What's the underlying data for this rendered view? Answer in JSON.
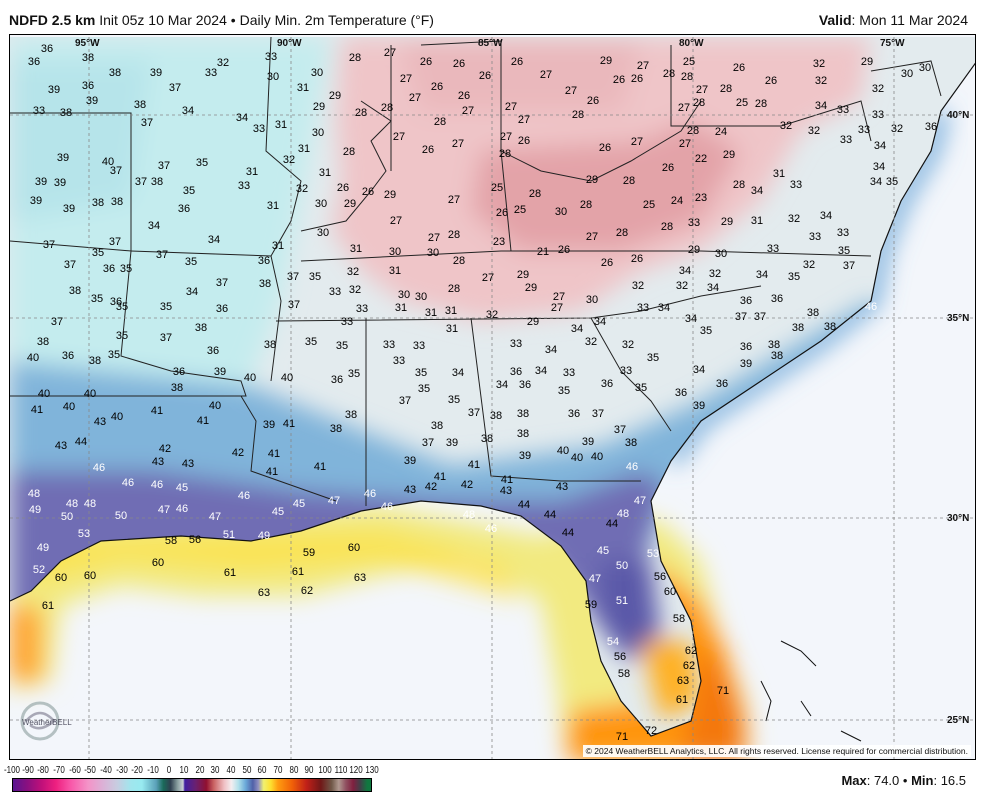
{
  "header": {
    "model": "NDFD 2.5 km",
    "init": "Init 05z 10 Mar 2024",
    "separator": "•",
    "product": "Daily Min. 2m Temperature (°F)",
    "valid_label": "Valid",
    "valid_value": ": Mon 11 Mar 2024"
  },
  "map": {
    "longitude_labels": [
      "95°W",
      "90°W",
      "85°W",
      "80°W",
      "75°W"
    ],
    "latitude_labels": [
      "40°N",
      "35°N",
      "30°N",
      "25°N"
    ],
    "temperature_labels": [
      36,
      38,
      36,
      33,
      28,
      27,
      26,
      26,
      26,
      29,
      25,
      26,
      32,
      29,
      39,
      36,
      38,
      39,
      37,
      33,
      32,
      30,
      30,
      31,
      29,
      27,
      27,
      26,
      26,
      26,
      27,
      27,
      26,
      26,
      26,
      27,
      28,
      28,
      27,
      28,
      25,
      26,
      28,
      32,
      32,
      30,
      30,
      39,
      38,
      37,
      34,
      34,
      33,
      31,
      29,
      28,
      28,
      28,
      27,
      27,
      27,
      28,
      27,
      28,
      24,
      28,
      33,
      34,
      32,
      32,
      32,
      33,
      36,
      38,
      33,
      39,
      40,
      37,
      37,
      38,
      37,
      35,
      33,
      31,
      32,
      30,
      31,
      28,
      27,
      26,
      27,
      28,
      27,
      26,
      26,
      27,
      27,
      22,
      29,
      31,
      28,
      34,
      33,
      33,
      33,
      34,
      34,
      34,
      35,
      39,
      39,
      39,
      39,
      38,
      38,
      36,
      35,
      34,
      31,
      32,
      31,
      26,
      26,
      29,
      29,
      30,
      27,
      27,
      25,
      28,
      26,
      25,
      30,
      28,
      28,
      29,
      26,
      25,
      24,
      23,
      28,
      33,
      29,
      31,
      32,
      34,
      33,
      33,
      37,
      35,
      37,
      37,
      34,
      31,
      30,
      31,
      30,
      30,
      27,
      28,
      23,
      21,
      26,
      27,
      28,
      29,
      30,
      33,
      35,
      32,
      37,
      37,
      36,
      35,
      35,
      36,
      37,
      35,
      32,
      31,
      28,
      27,
      29,
      26,
      26,
      34,
      32,
      34,
      35,
      29,
      38,
      35,
      36,
      34,
      37,
      38,
      33,
      32,
      30,
      30,
      28,
      27,
      30,
      32,
      32,
      34,
      37,
      35,
      35,
      36,
      37,
      33,
      31,
      31,
      31,
      32,
      27,
      33,
      34,
      34,
      36,
      36,
      37,
      37,
      38,
      38,
      38,
      46,
      38,
      35,
      37,
      38,
      33,
      31,
      29,
      34,
      34,
      32,
      38,
      35,
      35,
      33,
      33,
      33,
      34,
      32,
      35,
      35,
      36,
      38,
      40,
      36,
      38,
      35,
      36,
      36,
      33,
      34,
      35,
      36,
      34,
      33,
      36,
      33,
      35,
      34,
      39,
      38,
      38,
      39,
      40,
      40,
      36,
      35,
      35,
      35,
      37,
      34,
      36,
      35,
      36,
      36,
      39,
      40,
      40,
      41,
      40,
      43,
      40,
      41,
      40,
      41,
      38,
      38,
      39,
      41,
      38,
      37,
      38,
      38,
      36,
      37,
      38,
      37,
      38,
      39,
      37,
      38,
      43,
      44,
      46,
      42,
      43,
      43,
      42,
      41,
      41,
      41,
      39,
      39,
      40,
      39,
      40,
      40,
      41,
      41,
      41,
      43,
      42,
      42,
      43,
      43,
      44,
      46,
      48,
      46,
      45,
      46,
      46,
      45,
      47,
      46,
      46,
      44,
      47,
      48,
      49,
      48,
      48,
      50,
      50,
      47,
      46,
      47,
      45,
      48,
      46,
      44,
      44,
      51,
      49,
      53,
      58,
      56,
      59,
      60,
      45,
      53,
      50,
      49,
      52,
      60,
      60,
      60,
      61,
      61,
      63,
      63,
      62,
      47,
      56,
      60,
      61,
      59,
      51,
      58,
      54,
      56,
      58,
      62,
      62,
      63,
      61,
      71,
      72,
      71
    ]
  },
  "logo": {
    "text": "WeatherBELL"
  },
  "copyright": "© 2024 WeatherBELL Analytics, LLC. All rights reserved. License required for commercial distribution.",
  "colorbar": {
    "labels": [
      "-100",
      "-90",
      "-80",
      "-70",
      "-60",
      "-50",
      "-40",
      "-30",
      "-20",
      "-10",
      "0",
      "10",
      "20",
      "30",
      "40",
      "50",
      "60",
      "70",
      "80",
      "90",
      "100",
      "110",
      "120",
      "130"
    ]
  },
  "stats": {
    "max_label": "Max",
    "max_value": ": 74.0",
    "separator": "•",
    "min_label": "Min",
    "min_value": ": 16.5"
  },
  "colors": {
    "ocean": "#f3f6fb",
    "land_base": "#e3ebee",
    "cold_cyan": "#c4ecee",
    "pink": "#efc5c8",
    "deep_pink": "#e3a3a8",
    "blue": "#7fb4da",
    "purple": "#6f6db4",
    "yellow": "#f4ec7a",
    "orange": "#ff9510"
  }
}
